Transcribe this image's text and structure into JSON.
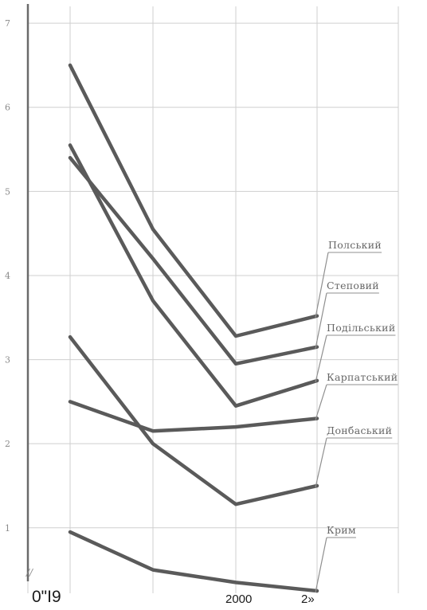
{
  "chart_data": {
    "type": "line",
    "x": [
      "0\"I9",
      "",
      "",
      "2000",
      "2»"
    ],
    "y_ticks": [
      "1",
      "2",
      "3",
      "4",
      "5",
      "6",
      "7"
    ],
    "ylim": [
      0.25,
      7.2
    ],
    "grid": true,
    "corner_text": "//",
    "series": [
      {
        "name": "Полський",
        "values": [
          6.5,
          4.55,
          null,
          3.28,
          3.52
        ]
      },
      {
        "name": "Подільський",
        "values": [
          5.55,
          3.7,
          null,
          2.45,
          2.75
        ]
      },
      {
        "name": "Степовий",
        "values": [
          5.4,
          4.2,
          null,
          2.95,
          3.15
        ]
      },
      {
        "name": "Карпатський",
        "values": [
          2.5,
          2.15,
          null,
          2.2,
          2.3
        ]
      },
      {
        "name": "Донбаський",
        "values": [
          3.27,
          2.0,
          null,
          1.28,
          1.5
        ]
      },
      {
        "name": "Крим",
        "values": [
          0.95,
          0.5,
          null,
          0.35,
          0.25
        ]
      }
    ]
  }
}
